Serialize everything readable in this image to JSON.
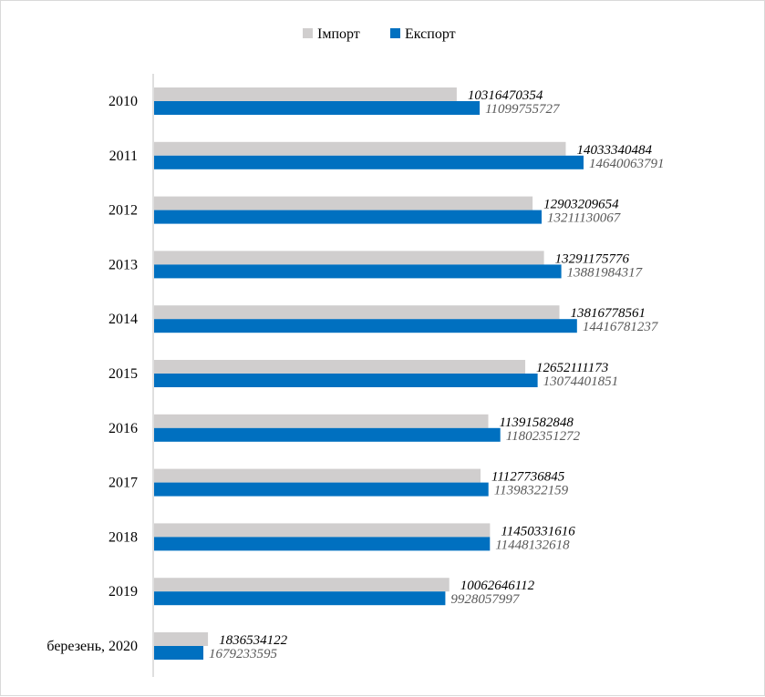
{
  "chart_data": {
    "type": "bar",
    "orientation": "horizontal",
    "categories": [
      "2010",
      "2011",
      "2012",
      "2013",
      "2014",
      "2015",
      "2016",
      "2017",
      "2018",
      "2019",
      "березень, 2020"
    ],
    "series": [
      {
        "name": "Імпорт",
        "color": "#d0cece",
        "values": [
          10316470354,
          14033340484,
          12903209654,
          13291175776,
          13816778561,
          12652111173,
          11391582848,
          11127736845,
          11450331616,
          10062646112,
          1836534122
        ]
      },
      {
        "name": "Експорт",
        "color": "#0070c0",
        "values": [
          11099755727,
          14640063791,
          13211130067,
          13881984317,
          14416781237,
          13074401851,
          11802351272,
          11398322159,
          11448132618,
          9928057997,
          1679233595
        ]
      }
    ],
    "data_labels": {
      "import": [
        "10316470354",
        "14033340484",
        "12903209654",
        "13291175776",
        "13816778561",
        "12652111173",
        "11391582848",
        "11127736845",
        "11450331616",
        "10062646112",
        "1836534122"
      ],
      "export": [
        "11099755727",
        "14640063791",
        "13211130067",
        "13881984317",
        "14416781237",
        "13074401851",
        "11802351272",
        "11398322159",
        "11448132618",
        "9928057997",
        "1679233595"
      ]
    },
    "legend_position": "top",
    "grid": false
  }
}
